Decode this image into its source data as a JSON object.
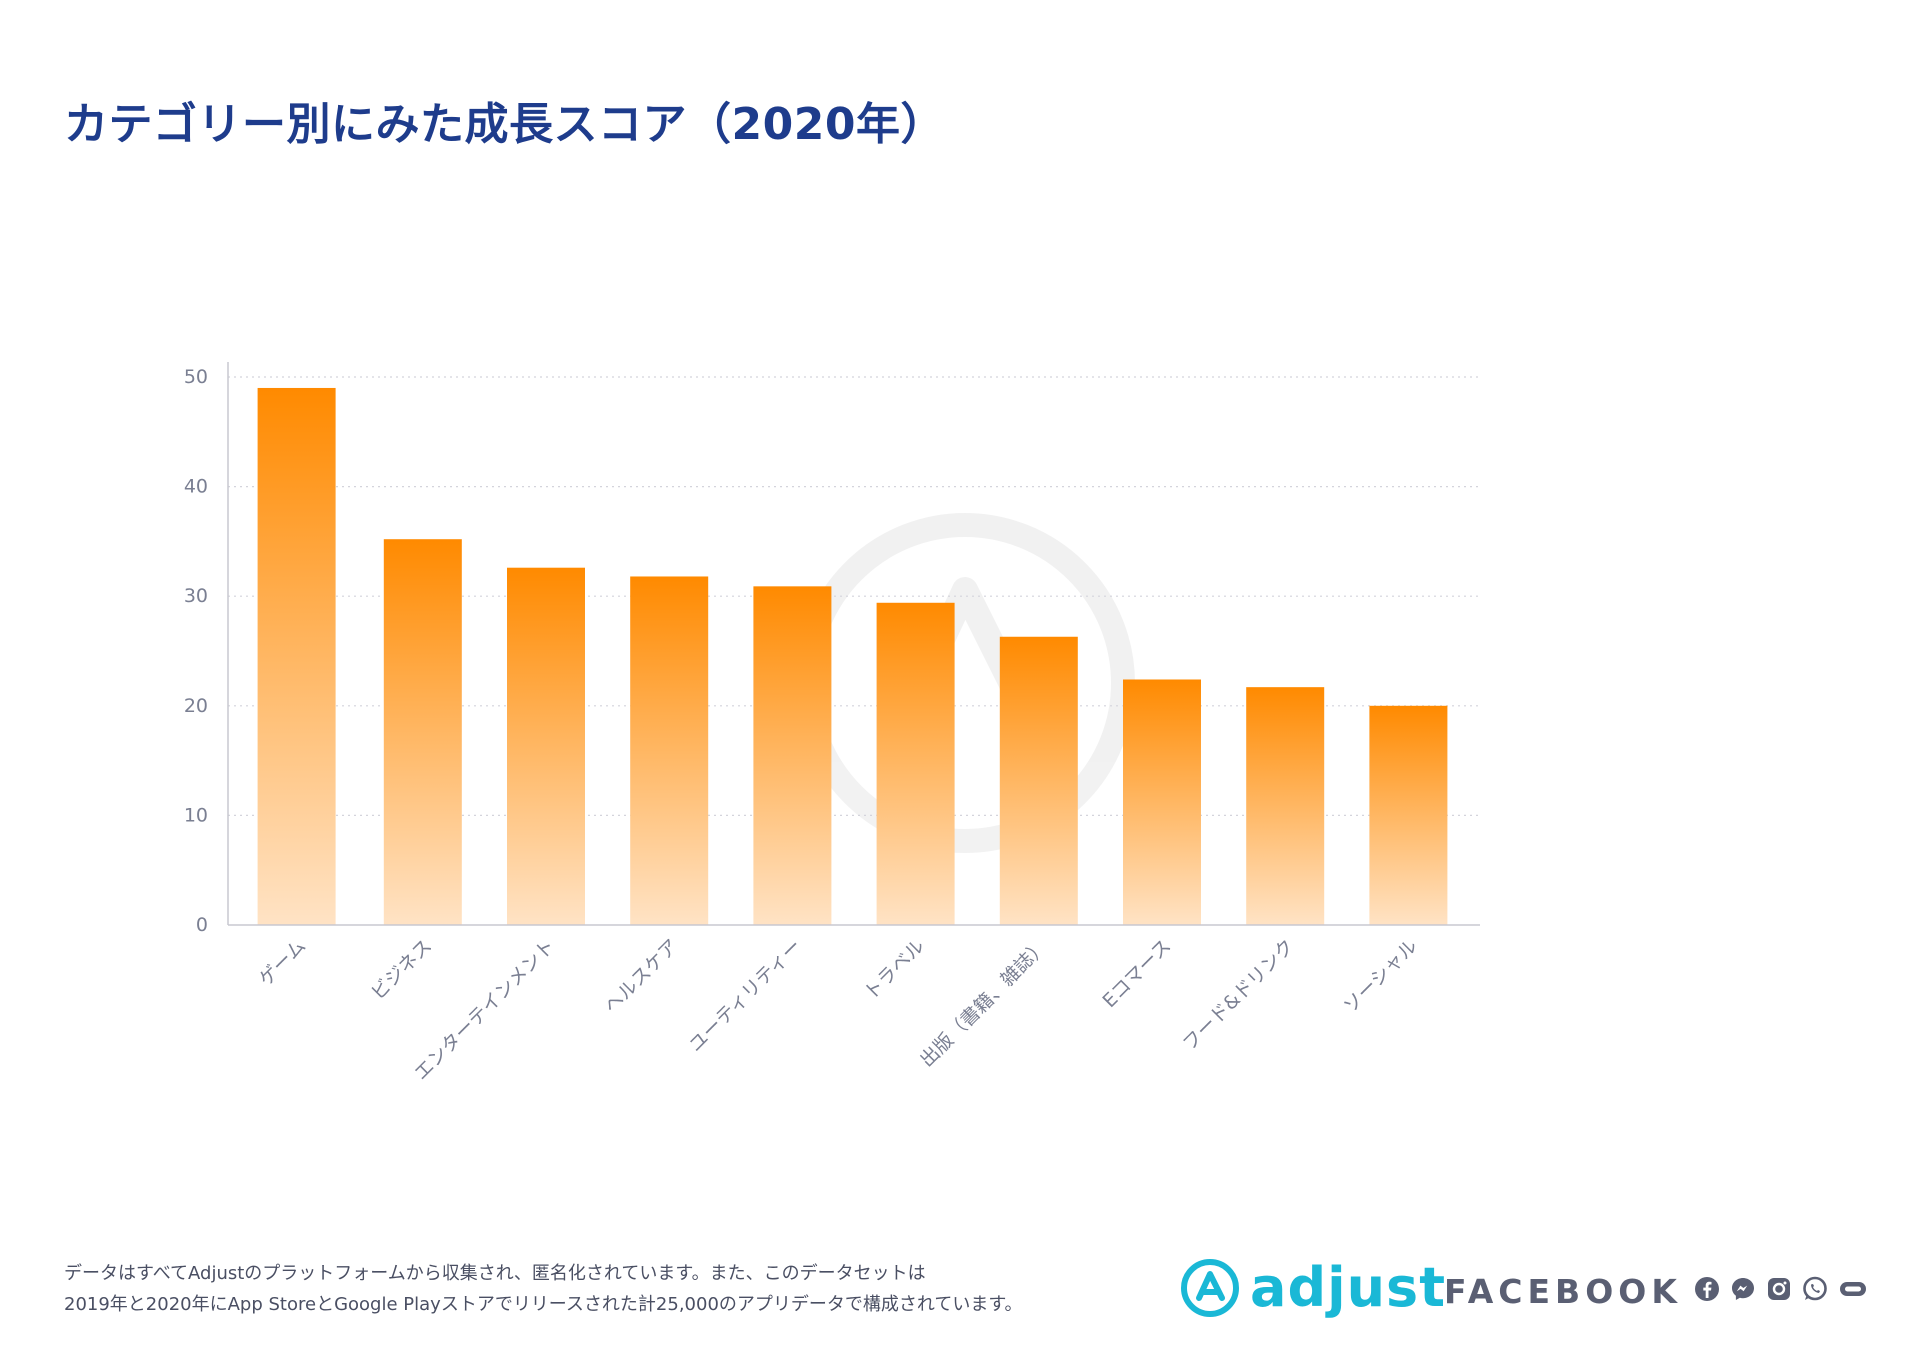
{
  "page": {
    "title": "カテゴリー別にみた成長スコア（2020年）",
    "footnote_line1": "データはすべてAdjustのプラットフォームから収集され、匿名化されています。また、このデータセットは",
    "footnote_line2": "2019年と2020年にApp StoreとGoogle Playストアでリリースされた計25,000のアプリデータで構成されています。",
    "brand_adjust": "adjust",
    "brand_facebook": "FACEBOOK",
    "icons": [
      "adjust-logo-icon",
      "facebook-icon",
      "messenger-icon",
      "instagram-icon",
      "whatsapp-icon",
      "oculus-icon"
    ]
  },
  "chart_data": {
    "type": "bar",
    "title": "カテゴリー別にみた成長スコア（2020年）",
    "categories": [
      "ゲーム",
      "ビジネス",
      "エンターテインメント",
      "ヘルスケア",
      "ユーティリティー",
      "トラベル",
      "出版（書籍、雑誌）",
      "Eコマース",
      "フード&ドリンク",
      "ソーシャル"
    ],
    "values": [
      49,
      35.2,
      32.6,
      31.8,
      30.9,
      29.4,
      26.3,
      22.4,
      21.7,
      20.0
    ],
    "yticks": [
      0,
      10,
      20,
      30,
      40,
      50
    ],
    "ylim": [
      0,
      50
    ],
    "xlabel": "",
    "ylabel": "",
    "grid": true,
    "colors": {
      "bar_top": "#ff8a00",
      "bar_bottom": "#ffe3c5",
      "grid": "#d4d4dc",
      "axis": "#c8c8d0",
      "label": "#7a7f92"
    }
  }
}
